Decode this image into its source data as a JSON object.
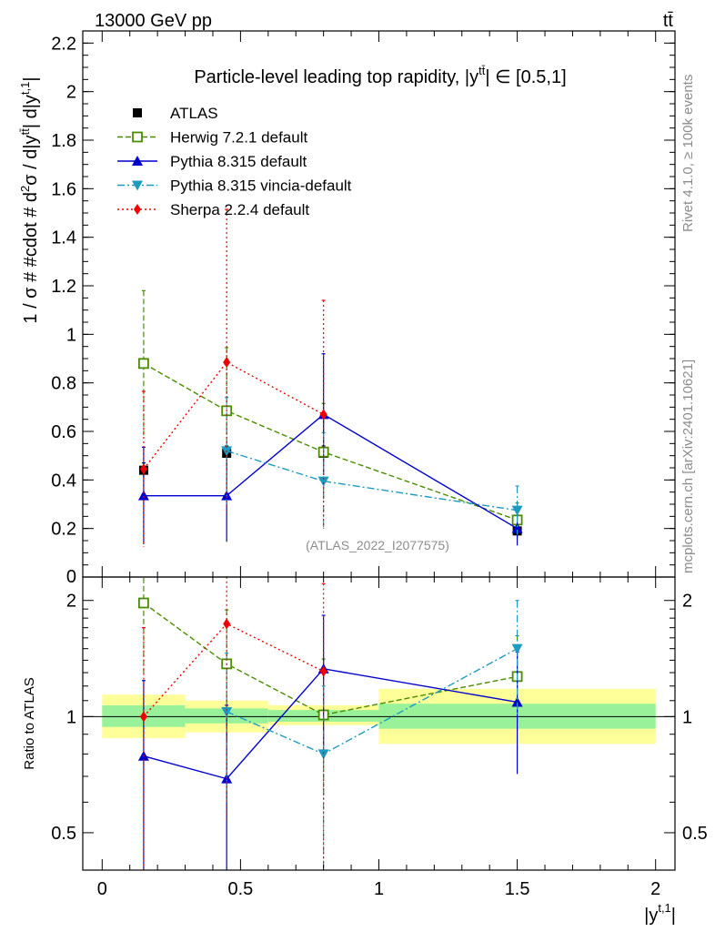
{
  "header": {
    "energy_label": "13000 GeV pp",
    "process_label": "tt̄"
  },
  "side_labels": {
    "rivet": "Rivet 4.1.0, ≥ 100k events",
    "mcplots": "mcplots.cern.ch [arXiv:2401.10621]"
  },
  "chart_data": [
    {
      "type": "line",
      "title": "Particle-level leading top rapidity, |y^{tt̄}| ∈ [0.5,1]",
      "title_main": "Particle-level leading top rapidity, |y",
      "title_sup": "tt̄",
      "title_tail": "| ∈ [0.5,1]",
      "ylabel": "1 / σ # #cdot # d²σ / d|y^{tt̄}| d|y^{t,1}|",
      "ylabel_parts": [
        "1 / σ # #cdot # d",
        "2",
        "σ / d|y",
        "tt̄",
        "| d|y",
        "t,1",
        "|"
      ],
      "watermark": "(ATLAS_2022_I2077575)",
      "xlim": [
        -0.07,
        2.07
      ],
      "ylim": [
        0,
        2.25
      ],
      "yticks": [
        0.2,
        0.4,
        0.6,
        0.8,
        1,
        1.2,
        1.4,
        1.6,
        1.8,
        2,
        2.2
      ],
      "ytick_labels": [
        "0.2",
        "0.4",
        "0.6",
        "0.8",
        "1",
        "1.2",
        "1.4",
        "1.6",
        "1.8",
        "2",
        "2.2"
      ],
      "zero_label": "0",
      "bins": [
        [
          0,
          0.3
        ],
        [
          0.3,
          0.6
        ],
        [
          0.6,
          1
        ],
        [
          1,
          2
        ]
      ],
      "series": [
        {
          "name": "ATLAS",
          "color": "#000000",
          "marker": "square",
          "style": "none",
          "x": [
            0.15,
            0.45,
            0.8,
            1.5
          ],
          "y": [
            0.44,
            0.51,
            0.51,
            0.19
          ],
          "err": [
            0.03,
            0.03,
            0.03,
            0.02
          ]
        },
        {
          "name": "Herwig 7.2.1 default",
          "color": "#4a8c00",
          "marker": "open-square",
          "style": "dashed",
          "x": [
            0.15,
            0.45,
            0.8,
            1.5
          ],
          "y": [
            0.88,
            0.685,
            0.515,
            0.235
          ],
          "err": [
            0.3,
            0.26,
            0.2,
            0.07
          ]
        },
        {
          "name": "Pythia 8.315 default",
          "color": "#0000cc",
          "marker": "triangle-up",
          "style": "solid",
          "x": [
            0.15,
            0.45,
            0.8,
            1.5
          ],
          "y": [
            0.335,
            0.335,
            0.67,
            0.2
          ],
          "err": [
            0.2,
            0.19,
            0.25,
            0.07
          ]
        },
        {
          "name": "Pythia 8.315 vincia-default",
          "color": "#1e9ac0",
          "marker": "triangle-down",
          "style": "dashdot",
          "x": [
            0.45,
            0.8,
            1.5
          ],
          "y": [
            0.52,
            0.395,
            0.275
          ],
          "err": [
            0.22,
            0.2,
            0.1
          ]
        },
        {
          "name": "Sherpa 2.2.4 default",
          "color": "#ee0000",
          "marker": "diamond",
          "style": "dotted",
          "x": [
            0.15,
            0.45,
            0.8
          ],
          "y": [
            0.445,
            0.885,
            0.67
          ],
          "err": [
            0.32,
            0.63,
            0.47
          ]
        }
      ]
    },
    {
      "type": "line",
      "ylabel": "Ratio to ATLAS",
      "xlabel": "|y^{t,1}|",
      "xlabel_parts": [
        "|y",
        "t,1",
        "|"
      ],
      "scale": "log",
      "xlim": [
        -0.07,
        2.07
      ],
      "ylim": [
        0.4,
        2.3
      ],
      "yticks": [
        0.5,
        1,
        2
      ],
      "ytick_labels": [
        "0.5",
        "1",
        "2"
      ],
      "xticks": [
        0,
        0.5,
        1,
        1.5,
        2
      ],
      "xtick_labels": [
        "0",
        "0.5",
        "1",
        "1.5",
        "2"
      ],
      "bands": [
        {
          "x0": 0,
          "x1": 0.3,
          "inner": [
            0.94,
            1.07
          ],
          "outer": [
            0.88,
            1.14
          ]
        },
        {
          "x0": 0.3,
          "x1": 0.6,
          "inner": [
            0.96,
            1.05
          ],
          "outer": [
            0.91,
            1.1
          ]
        },
        {
          "x0": 0.6,
          "x1": 1,
          "inner": [
            0.97,
            1.04
          ],
          "outer": [
            0.95,
            1.07
          ]
        },
        {
          "x0": 1,
          "x1": 2,
          "inner": [
            0.93,
            1.08
          ],
          "outer": [
            0.85,
            1.18
          ]
        }
      ],
      "series": [
        {
          "name": "Herwig 7.2.1 default",
          "color": "#4a8c00",
          "marker": "open-square",
          "style": "dashed",
          "x": [
            0.15,
            0.45,
            0.8,
            1.5
          ],
          "y": [
            1.97,
            1.37,
            1.01,
            1.27
          ],
          "err": [
            0.68,
            0.52,
            0.4,
            0.35
          ]
        },
        {
          "name": "Pythia 8.315 default",
          "color": "#0000cc",
          "marker": "triangle-up",
          "style": "solid",
          "x": [
            0.15,
            0.45,
            0.8,
            1.5
          ],
          "y": [
            0.79,
            0.69,
            1.33,
            1.09
          ],
          "err": [
            0.45,
            0.38,
            0.5,
            0.38
          ]
        },
        {
          "name": "Pythia 8.315 vincia-default",
          "color": "#1e9ac0",
          "marker": "triangle-down",
          "style": "dashdot",
          "x": [
            0.45,
            0.8,
            1.5
          ],
          "y": [
            1.03,
            0.8,
            1.5
          ],
          "err": [
            0.43,
            0.4,
            0.5
          ]
        },
        {
          "name": "Sherpa 2.2.4 default",
          "color": "#ee0000",
          "marker": "diamond",
          "style": "dotted",
          "x": [
            0.15,
            0.45,
            0.8
          ],
          "y": [
            1.0,
            1.74,
            1.31
          ],
          "err": [
            0.7,
            1.2,
            0.9
          ]
        }
      ]
    }
  ]
}
